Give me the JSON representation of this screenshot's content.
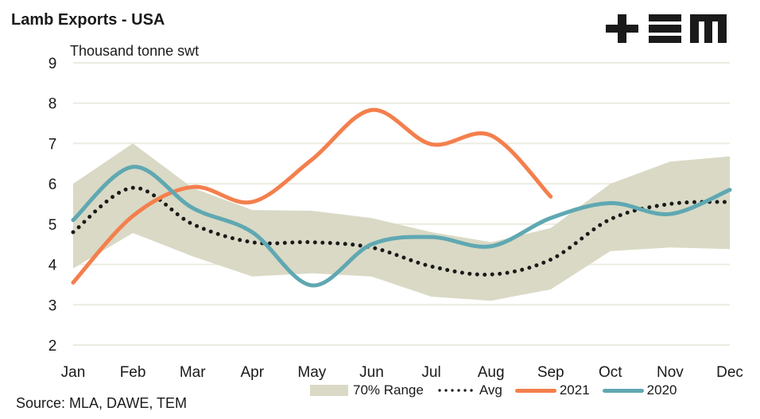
{
  "header": {
    "title": "Lamb Exports - USA",
    "unit": "Thousand tonne swt",
    "logo_text": "+EM"
  },
  "footer": {
    "source": "Source: MLA, DAWE, TEM"
  },
  "colors": {
    "range": "#d9d9c5",
    "avg": "#1a1a1a",
    "y2021": "#f47f4d",
    "y2020": "#5fa8b2",
    "grid": "#ebebe0"
  },
  "chart_data": {
    "type": "line",
    "title": "Lamb Exports - USA",
    "ylabel": "Thousand tonne swt",
    "xlabel": "",
    "ylim": [
      2,
      9
    ],
    "yticks": [
      2,
      3,
      4,
      5,
      6,
      7,
      8,
      9
    ],
    "grid": true,
    "legend_position": "bottom",
    "categories": [
      "Jan",
      "Feb",
      "Mar",
      "Apr",
      "May",
      "Jun",
      "Jul",
      "Aug",
      "Sep",
      "Oct",
      "Nov",
      "Dec"
    ],
    "range": {
      "name": "70% Range",
      "upper": [
        6.0,
        7.0,
        5.9,
        5.35,
        5.33,
        5.15,
        4.8,
        4.55,
        4.9,
        6.0,
        6.55,
        6.68
      ],
      "lower": [
        3.9,
        4.78,
        4.2,
        3.7,
        3.78,
        3.7,
        3.2,
        3.1,
        3.38,
        4.33,
        4.42,
        4.38
      ]
    },
    "series": [
      {
        "name": "Avg",
        "style": "dotted",
        "values": [
          4.8,
          5.9,
          5.0,
          4.55,
          4.55,
          4.42,
          3.95,
          3.75,
          4.12,
          5.12,
          5.5,
          5.55
        ]
      },
      {
        "name": "2021",
        "style": "solid",
        "values": [
          3.55,
          5.2,
          5.92,
          5.55,
          6.6,
          7.83,
          6.98,
          7.2,
          5.68,
          null,
          null,
          null
        ]
      },
      {
        "name": "2020",
        "style": "solid",
        "values": [
          5.1,
          6.42,
          5.4,
          4.8,
          3.48,
          4.5,
          4.68,
          4.45,
          5.15,
          5.52,
          5.25,
          5.85
        ]
      }
    ]
  },
  "legend": {
    "range_label": "70% Range",
    "avg_label": "Avg",
    "y2021_label": "2021",
    "y2020_label": "2020"
  }
}
